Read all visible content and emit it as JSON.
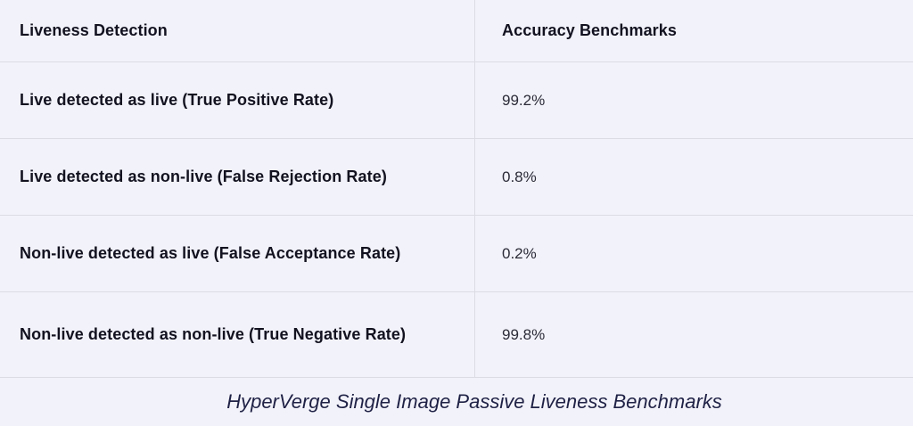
{
  "table": {
    "columns": [
      {
        "label": "Liveness Detection"
      },
      {
        "label": "Accuracy Benchmarks"
      }
    ],
    "rows": [
      {
        "metric": "Live detected as live (True Positive Rate)",
        "value": "99.2%"
      },
      {
        "metric": "Live detected as non-live (False Rejection Rate)",
        "value": "0.8%"
      },
      {
        "metric": "Non-live detected as live (False Acceptance Rate)",
        "value": "0.2%"
      },
      {
        "metric": "Non-live detected as non-live (True Negative Rate)",
        "value": "99.8%"
      }
    ]
  },
  "caption": "HyperVerge Single Image Passive Liveness Benchmarks",
  "colors": {
    "background": "#f2f2fa",
    "border": "#dcdce4",
    "heading_text": "#121220",
    "value_text": "#2b2b38",
    "caption_text": "#1f2145"
  },
  "chart_data": {
    "type": "table",
    "title": "HyperVerge Single Image Passive Liveness Benchmarks",
    "columns": [
      "Liveness Detection",
      "Accuracy Benchmarks"
    ],
    "categories": [
      "Live detected as live (True Positive Rate)",
      "Live detected as non-live (False Rejection Rate)",
      "Non-live detected as live (False Acceptance Rate)",
      "Non-live detected as non-live (True Negative Rate)"
    ],
    "values": [
      99.2,
      0.8,
      0.2,
      99.8
    ],
    "value_labels": [
      "99.2%",
      "0.8%",
      "0.2%",
      "99.8%"
    ],
    "unit": "%"
  }
}
